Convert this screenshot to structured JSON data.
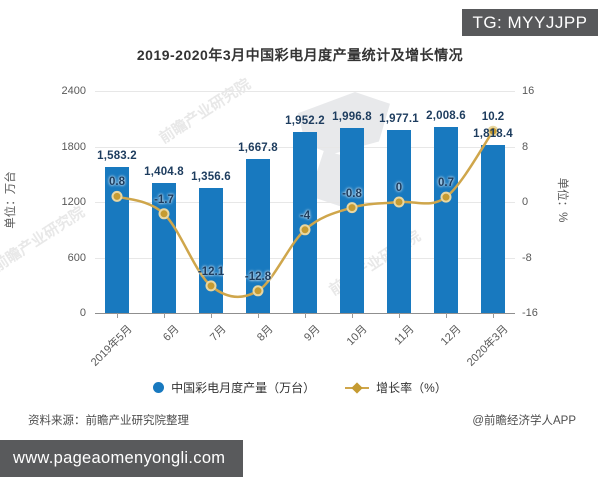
{
  "badge": {
    "label": "TG: MYYJJPP"
  },
  "title": "2019-2020年3月中国彩电月度产量统计及增长情况",
  "chart_data": {
    "type": "bar+line",
    "categories": [
      "2019年5月",
      "6月",
      "7月",
      "8月",
      "9月",
      "10月",
      "11月",
      "12月",
      "2020年3月"
    ],
    "series": [
      {
        "name": "中国彩电月度产量（万台）",
        "type": "bar",
        "values": [
          1583.2,
          1404.8,
          1356.6,
          1667.8,
          1952.2,
          1996.8,
          1977.1,
          2008.6,
          1818.4
        ],
        "labels": [
          "1,583.2",
          "1,404.8",
          "1,356.6",
          "1,667.8",
          "1,952.2",
          "1,996.8",
          "1,977.1",
          "2,008.6",
          "1,818.4"
        ]
      },
      {
        "name": "增长率（%）",
        "type": "line",
        "values": [
          0.8,
          -1.7,
          -12.1,
          -12.8,
          -4,
          -0.8,
          0,
          0.7,
          10.2
        ],
        "labels": [
          "0.8",
          "-1.7",
          "-12.1",
          "-12.8",
          "-4",
          "-0.8",
          "0",
          "0.7",
          "10.2"
        ]
      }
    ],
    "left_axis": {
      "title": "单位：万台",
      "min": 0,
      "max": 2400,
      "ticks": [
        "2400",
        "1800",
        "1200",
        "600",
        "0"
      ]
    },
    "right_axis": {
      "title": "单位：%",
      "min": -16,
      "max": 16,
      "ticks": [
        "16",
        "8",
        "0",
        "-8",
        "-16"
      ]
    },
    "grid": true,
    "legend_position": "bottom"
  },
  "legend": {
    "production": "中国彩电月度产量（万台）",
    "growth": "增长率（%）"
  },
  "footer": {
    "source": "资料来源：前瞻产业研究院整理",
    "credit": "@前瞻经济学人APP"
  },
  "url_bar": {
    "text": "www.pageaomenyongli.com"
  },
  "watermark": {
    "text": "前瞻产业研究院"
  },
  "colors": {
    "bar": "#1879bf",
    "line": "#cfa64b",
    "marker_fill": "#c59b32",
    "marker_ring": "#e8d7a2",
    "value_label": "#1d3c5e",
    "badge_bg": "#58595b",
    "url_bar_bg": "#595a5c"
  }
}
